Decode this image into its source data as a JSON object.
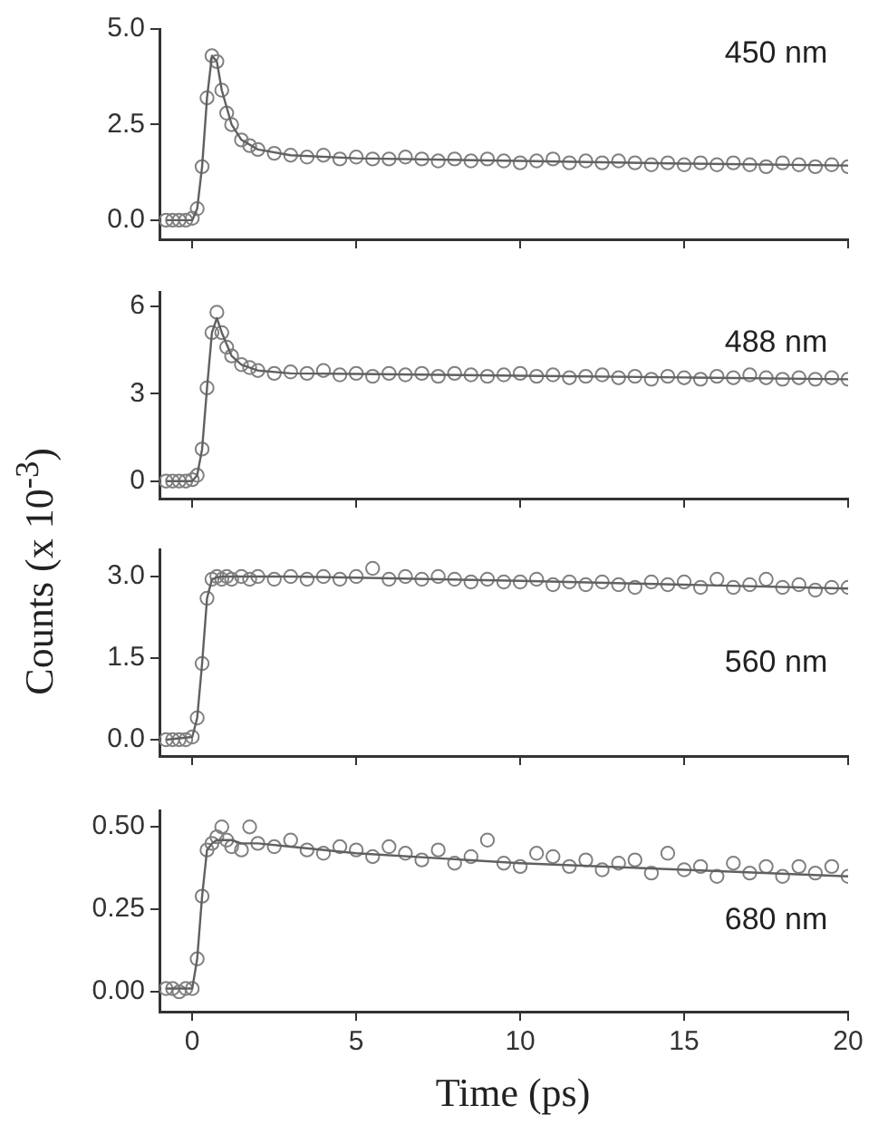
{
  "chart_data": [
    {
      "type": "scatter",
      "annotations": [
        "450 nm"
      ],
      "xlim": [
        -1,
        20
      ],
      "xticks": [
        {
          "value": 0,
          "label": null
        },
        {
          "value": 5,
          "label": null
        },
        {
          "value": 10,
          "label": null
        },
        {
          "value": 15,
          "label": null
        },
        {
          "value": 20,
          "label": null
        }
      ],
      "ylim": [
        -0.5,
        5.0
      ],
      "yticks": [
        {
          "value": 0,
          "label": "0.0"
        },
        2.5,
        {
          "value": 5,
          "label": "5.0"
        }
      ],
      "tick_labels": "y",
      "legend": false,
      "series": [
        {
          "type": "scatter",
          "marker": "circle",
          "color": "#808080",
          "x": [
            -0.8,
            -0.6,
            -0.4,
            -0.2,
            0,
            0.15,
            0.3,
            0.45,
            0.6,
            0.75,
            0.9,
            1.05,
            1.2,
            1.5,
            1.75,
            2,
            2.5,
            3,
            3.5,
            4,
            4.5,
            5,
            5.5,
            6,
            6.5,
            7,
            7.5,
            8,
            8.5,
            9,
            9.5,
            10,
            10.5,
            11,
            11.5,
            12,
            12.5,
            13,
            13.5,
            14,
            14.5,
            15,
            15.5,
            16,
            16.5,
            17,
            17.5,
            18,
            18.5,
            19,
            19.5,
            20
          ],
          "values": [
            0,
            0,
            0,
            0,
            0.05,
            0.3,
            1.4,
            3.2,
            4.3,
            4.15,
            3.4,
            2.8,
            2.5,
            2.1,
            1.95,
            1.85,
            1.75,
            1.7,
            1.65,
            1.7,
            1.6,
            1.65,
            1.6,
            1.6,
            1.65,
            1.6,
            1.55,
            1.6,
            1.55,
            1.6,
            1.55,
            1.5,
            1.55,
            1.6,
            1.5,
            1.55,
            1.5,
            1.55,
            1.5,
            1.45,
            1.5,
            1.45,
            1.5,
            1.45,
            1.5,
            1.45,
            1.4,
            1.5,
            1.45,
            1.4,
            1.45,
            1.4
          ]
        },
        {
          "type": "line",
          "marker": "none",
          "line_style": "solid",
          "color": "#606060",
          "x": [
            -0.8,
            0,
            0.15,
            0.3,
            0.45,
            0.6,
            0.75,
            0.9,
            1.2,
            1.5,
            2,
            3,
            5,
            10,
            15,
            20
          ],
          "values": [
            0,
            0,
            0.3,
            1.4,
            3.2,
            4.3,
            4.15,
            3.4,
            2.5,
            2.1,
            1.85,
            1.7,
            1.62,
            1.55,
            1.48,
            1.43
          ]
        }
      ]
    },
    {
      "type": "scatter",
      "annotations": [
        "488 nm"
      ],
      "ylabel": "Counts (x 10$^{-3}$)",
      "xlim": [
        -1,
        20
      ],
      "xticks": [
        {
          "value": 0,
          "label": null
        },
        {
          "value": 5,
          "label": null
        },
        {
          "value": 10,
          "label": null
        },
        {
          "value": 15,
          "label": null
        },
        {
          "value": 20,
          "label": null
        }
      ],
      "ylim": [
        -0.6,
        6.5
      ],
      "yticks": [
        0,
        3,
        6
      ],
      "tick_labels": "y",
      "legend": false,
      "series": [
        {
          "type": "scatter",
          "marker": "circle",
          "color": "#808080",
          "x": [
            -0.8,
            -0.6,
            -0.4,
            -0.2,
            0,
            0.15,
            0.3,
            0.45,
            0.6,
            0.75,
            0.9,
            1.05,
            1.2,
            1.5,
            1.75,
            2,
            2.5,
            3,
            3.5,
            4,
            4.5,
            5,
            5.5,
            6,
            6.5,
            7,
            7.5,
            8,
            8.5,
            9,
            9.5,
            10,
            10.5,
            11,
            11.5,
            12,
            12.5,
            13,
            13.5,
            14,
            14.5,
            15,
            15.5,
            16,
            16.5,
            17,
            17.5,
            18,
            18.5,
            19,
            19.5,
            20
          ],
          "values": [
            0,
            0,
            0,
            0,
            0.05,
            0.2,
            1.1,
            3.2,
            5.1,
            5.8,
            5.1,
            4.6,
            4.3,
            4.0,
            3.9,
            3.8,
            3.7,
            3.75,
            3.7,
            3.8,
            3.65,
            3.7,
            3.6,
            3.7,
            3.65,
            3.7,
            3.6,
            3.7,
            3.65,
            3.6,
            3.65,
            3.7,
            3.6,
            3.65,
            3.55,
            3.6,
            3.65,
            3.55,
            3.6,
            3.5,
            3.6,
            3.55,
            3.5,
            3.6,
            3.55,
            3.65,
            3.55,
            3.5,
            3.55,
            3.5,
            3.55,
            3.5
          ]
        },
        {
          "type": "line",
          "marker": "none",
          "line_style": "solid",
          "color": "#606060",
          "x": [
            -0.8,
            0,
            0.15,
            0.3,
            0.45,
            0.6,
            0.75,
            0.9,
            1.2,
            1.5,
            2,
            3,
            5,
            10,
            15,
            20
          ],
          "values": [
            0,
            0,
            0.2,
            1.1,
            3.2,
            5.1,
            5.6,
            5.1,
            4.3,
            4.0,
            3.8,
            3.7,
            3.68,
            3.62,
            3.56,
            3.5
          ]
        }
      ]
    },
    {
      "type": "scatter",
      "annotations": [
        "560 nm"
      ],
      "xlim": [
        -1,
        20
      ],
      "xticks": [
        {
          "value": 0,
          "label": null
        },
        {
          "value": 5,
          "label": null
        },
        {
          "value": 10,
          "label": null
        },
        {
          "value": 15,
          "label": null
        },
        {
          "value": 20,
          "label": null
        }
      ],
      "ylim": [
        -0.3,
        3.5
      ],
      "yticks": [
        {
          "value": 0,
          "label": "0.0"
        },
        1.5,
        {
          "value": 3,
          "label": "3.0"
        }
      ],
      "tick_labels": "y",
      "legend": false,
      "series": [
        {
          "type": "scatter",
          "marker": "circle",
          "color": "#808080",
          "x": [
            -0.8,
            -0.6,
            -0.4,
            -0.2,
            0,
            0.15,
            0.3,
            0.45,
            0.6,
            0.75,
            0.9,
            1.05,
            1.2,
            1.5,
            1.75,
            2,
            2.5,
            3,
            3.5,
            4,
            4.5,
            5,
            5.5,
            6,
            6.5,
            7,
            7.5,
            8,
            8.5,
            9,
            9.5,
            10,
            10.5,
            11,
            11.5,
            12,
            12.5,
            13,
            13.5,
            14,
            14.5,
            15,
            15.5,
            16,
            16.5,
            17,
            17.5,
            18,
            18.5,
            19,
            19.5,
            20
          ],
          "values": [
            0,
            0,
            0,
            0,
            0.05,
            0.4,
            1.4,
            2.6,
            2.95,
            3.0,
            2.95,
            3.0,
            2.95,
            3.0,
            2.95,
            3.0,
            2.95,
            3.0,
            2.95,
            3.0,
            2.95,
            3.0,
            3.15,
            2.95,
            3.0,
            2.95,
            3.0,
            2.95,
            2.9,
            2.95,
            2.9,
            2.9,
            2.95,
            2.85,
            2.9,
            2.85,
            2.9,
            2.85,
            2.8,
            2.9,
            2.85,
            2.9,
            2.8,
            2.95,
            2.8,
            2.85,
            2.95,
            2.8,
            2.85,
            2.75,
            2.8,
            2.8
          ]
        },
        {
          "type": "line",
          "marker": "none",
          "line_style": "solid",
          "color": "#606060",
          "x": [
            -0.8,
            0,
            0.15,
            0.3,
            0.45,
            0.6,
            0.75,
            0.9,
            1.2,
            1.5,
            2,
            3,
            5,
            10,
            15,
            20
          ],
          "values": [
            0,
            0.05,
            0.4,
            1.4,
            2.6,
            2.95,
            2.98,
            3.0,
            3.0,
            3.0,
            3.0,
            3.0,
            2.98,
            2.92,
            2.85,
            2.78
          ]
        }
      ]
    },
    {
      "type": "scatter",
      "annotations": [
        "680 nm"
      ],
      "xlabel": "Time (ps)",
      "xlim": [
        -1,
        20
      ],
      "xticks": [
        0,
        5,
        10,
        15,
        20
      ],
      "ylim": [
        -0.06,
        0.55
      ],
      "yticks": [
        {
          "value": 0,
          "label": "0.00"
        },
        0.25,
        {
          "value": 0.5,
          "label": "0.50"
        }
      ],
      "legend": false,
      "series": [
        {
          "type": "scatter",
          "marker": "circle",
          "color": "#808080",
          "x": [
            -0.8,
            -0.6,
            -0.4,
            -0.2,
            0,
            0.15,
            0.3,
            0.45,
            0.6,
            0.75,
            0.9,
            1.05,
            1.2,
            1.5,
            1.75,
            2,
            2.5,
            3,
            3.5,
            4,
            4.5,
            5,
            5.5,
            6,
            6.5,
            7,
            7.5,
            8,
            8.5,
            9,
            9.5,
            10,
            10.5,
            11,
            11.5,
            12,
            12.5,
            13,
            13.5,
            14,
            14.5,
            15,
            15.5,
            16,
            16.5,
            17,
            17.5,
            18,
            18.5,
            19,
            19.5,
            20
          ],
          "values": [
            0.01,
            0.01,
            0,
            0.01,
            0.01,
            0.1,
            0.29,
            0.43,
            0.45,
            0.47,
            0.5,
            0.46,
            0.44,
            0.43,
            0.5,
            0.45,
            0.44,
            0.46,
            0.43,
            0.42,
            0.44,
            0.43,
            0.41,
            0.44,
            0.42,
            0.4,
            0.43,
            0.39,
            0.41,
            0.46,
            0.39,
            0.38,
            0.42,
            0.41,
            0.38,
            0.4,
            0.37,
            0.39,
            0.4,
            0.36,
            0.42,
            0.37,
            0.38,
            0.35,
            0.39,
            0.36,
            0.38,
            0.35,
            0.38,
            0.36,
            0.38,
            0.35
          ]
        },
        {
          "type": "line",
          "marker": "none",
          "line_style": "solid",
          "color": "#606060",
          "x": [
            -0.8,
            0,
            0.15,
            0.3,
            0.45,
            0.6,
            0.75,
            0.9,
            1.2,
            1.5,
            2,
            3,
            5,
            10,
            15,
            20
          ],
          "values": [
            0.01,
            0.01,
            0.1,
            0.29,
            0.43,
            0.45,
            0.46,
            0.46,
            0.46,
            0.45,
            0.45,
            0.44,
            0.42,
            0.39,
            0.37,
            0.35
          ]
        }
      ]
    }
  ]
}
